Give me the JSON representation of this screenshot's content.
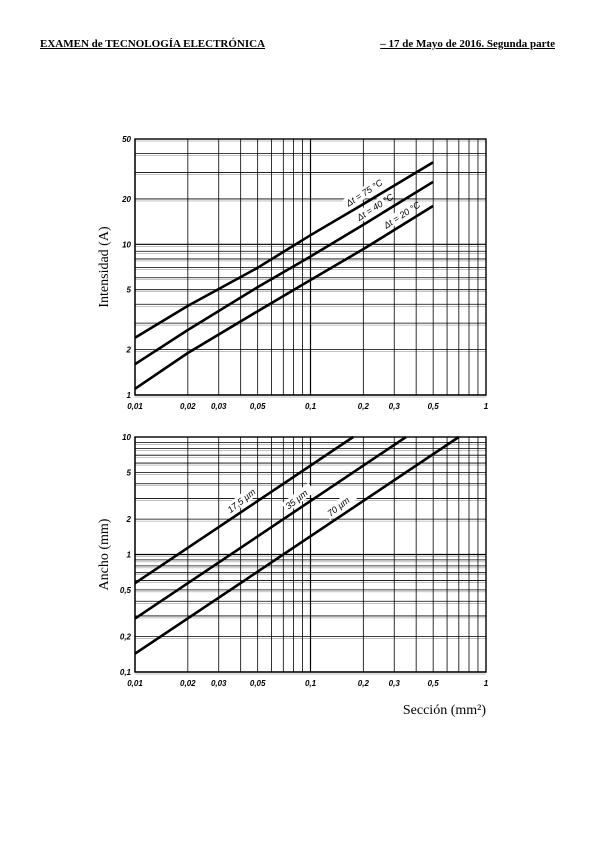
{
  "header": {
    "left": "EXAMEN de TECNOLOGÍA ELECTRÓNICA",
    "right": "– 17 de Mayo de 2016. Segunda parte"
  },
  "chart_data": [
    {
      "type": "line",
      "ylabel": "Intensidad (A)",
      "xlabel": "",
      "xscale": "log",
      "yscale": "log",
      "xlim": [
        0.01,
        1
      ],
      "ylim": [
        1,
        50
      ],
      "x_ticks": [
        "0,01",
        "0,02",
        "0,03",
        "0,05",
        "0,1",
        "0,2",
        "0,3",
        "0,5",
        "1"
      ],
      "y_ticks": [
        "1",
        "2",
        "5",
        "10",
        "20",
        "50"
      ],
      "grid": true,
      "series": [
        {
          "name": "Δt = 75 °C",
          "x": [
            0.01,
            0.02,
            0.05,
            0.1,
            0.2,
            0.5
          ],
          "y": [
            2.4,
            3.9,
            7.0,
            11.5,
            18.5,
            35
          ]
        },
        {
          "name": "Δt = 40 °C",
          "x": [
            0.01,
            0.02,
            0.05,
            0.1,
            0.2,
            0.5
          ],
          "y": [
            1.6,
            2.7,
            5.2,
            8.3,
            13.5,
            26
          ]
        },
        {
          "name": "Δt = 20 °C",
          "x": [
            0.01,
            0.02,
            0.05,
            0.1,
            0.2,
            0.5
          ],
          "y": [
            1.1,
            1.9,
            3.6,
            5.8,
            9.3,
            18
          ]
        }
      ]
    },
    {
      "type": "line",
      "ylabel": "Ancho (mm)",
      "xlabel": "Sección (mm²)",
      "xscale": "log",
      "yscale": "log",
      "xlim": [
        0.01,
        1
      ],
      "ylim": [
        0.1,
        10
      ],
      "x_ticks": [
        "0,01",
        "0,02",
        "0,03",
        "0,05",
        "0,1",
        "0,2",
        "0,3",
        "0,5",
        "1"
      ],
      "y_ticks": [
        "0,1",
        "0,2",
        "0,5",
        "1",
        "2",
        "5",
        "10"
      ],
      "grid": true,
      "series": [
        {
          "name": "17,5 µm",
          "x": [
            0.01,
            0.175
          ],
          "y": [
            0.57,
            10
          ]
        },
        {
          "name": "35 µm",
          "x": [
            0.01,
            0.35
          ],
          "y": [
            0.285,
            10
          ]
        },
        {
          "name": "70 µm",
          "x": [
            0.01,
            0.7
          ],
          "y": [
            0.143,
            10
          ]
        }
      ]
    }
  ]
}
